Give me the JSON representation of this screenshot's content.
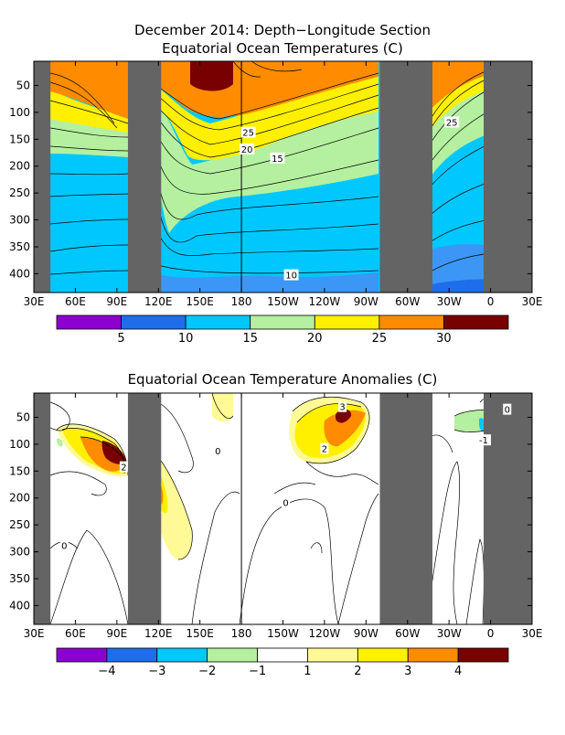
{
  "colors": {
    "land": "#646464",
    "purple": "#8c00d2",
    "blue_dark": "#1e6eeb",
    "blue_mid": "#3c96f5",
    "cyan": "#00c8ff",
    "green_light": "#b4f0a0",
    "white": "#ffffff",
    "yellow_light": "#fffa96",
    "yellow": "#fff000",
    "orange": "#ff8c00",
    "dark_red": "#780000"
  },
  "chart_data": [
    {
      "type": "heatmap",
      "title_line1": "December 2014: Depth−Longitude Section",
      "title_line2": "Equatorial Ocean Temperatures (C)",
      "x_ticks": [
        "30E",
        "60E",
        "90E",
        "120E",
        "150E",
        "180",
        "150W",
        "120W",
        "90W",
        "60W",
        "30W",
        "0",
        "30E"
      ],
      "x_range_deg_east": [
        30,
        390
      ],
      "y_ticks": [
        50,
        100,
        150,
        200,
        250,
        300,
        350,
        400
      ],
      "y_range_m": [
        5,
        435
      ],
      "land_bands_deg_east": [
        [
          30,
          42
        ],
        [
          98,
          122
        ],
        [
          280,
          318
        ],
        [
          355,
          390
        ]
      ],
      "vertical_line_deg_east": 180,
      "contour_labels": [
        {
          "text": "25",
          "lon": 185,
          "depth": 137
        },
        {
          "text": "20",
          "lon": 184,
          "depth": 168
        },
        {
          "text": "15",
          "lon": 206,
          "depth": 185
        },
        {
          "text": "25",
          "lon": 332,
          "depth": 118
        },
        {
          "text": "10",
          "lon": 216,
          "depth": 402
        }
      ],
      "colorbar": {
        "boundaries": [
          5,
          10,
          15,
          20,
          25,
          30
        ],
        "labels": [
          "5",
          "10",
          "15",
          "20",
          "25",
          "30"
        ],
        "color_keys": [
          "purple",
          "blue_dark",
          "cyan",
          "green_light",
          "yellow",
          "orange",
          "dark_red"
        ]
      }
    },
    {
      "type": "heatmap",
      "title": "Equatorial Ocean Temperature Anomalies (C)",
      "x_ticks": [
        "30E",
        "60E",
        "90E",
        "120E",
        "150E",
        "180",
        "150W",
        "120W",
        "90W",
        "60W",
        "30W",
        "0",
        "30E"
      ],
      "x_range_deg_east": [
        30,
        390
      ],
      "y_ticks": [
        50,
        100,
        150,
        200,
        250,
        300,
        350,
        400
      ],
      "y_range_m": [
        5,
        435
      ],
      "land_bands_deg_east": [
        [
          30,
          42
        ],
        [
          98,
          122
        ],
        [
          280,
          318
        ],
        [
          355,
          390
        ]
      ],
      "vertical_line_deg_east": 180,
      "contour_labels": [
        {
          "text": "3",
          "lon": 253,
          "depth": 30
        },
        {
          "text": "2",
          "lon": 240,
          "depth": 108
        },
        {
          "text": "2",
          "lon": 95,
          "depth": 142
        },
        {
          "text": "-1",
          "lon": 355,
          "depth": 92
        },
        {
          "text": "0",
          "lon": 372,
          "depth": 35
        },
        {
          "text": "0",
          "lon": 52,
          "depth": 288
        },
        {
          "text": "0",
          "lon": 163,
          "depth": 112
        },
        {
          "text": "0",
          "lon": 212,
          "depth": 208
        }
      ],
      "colorbar": {
        "boundaries": [
          -4,
          -3,
          -2,
          -1,
          1,
          2,
          3,
          4
        ],
        "labels": [
          "−4",
          "−3",
          "−2",
          "−1",
          "1",
          "2",
          "3",
          "4"
        ],
        "color_keys": [
          "purple",
          "blue_dark",
          "cyan",
          "green_light",
          "white",
          "yellow_light",
          "yellow",
          "orange",
          "dark_red"
        ]
      }
    }
  ]
}
